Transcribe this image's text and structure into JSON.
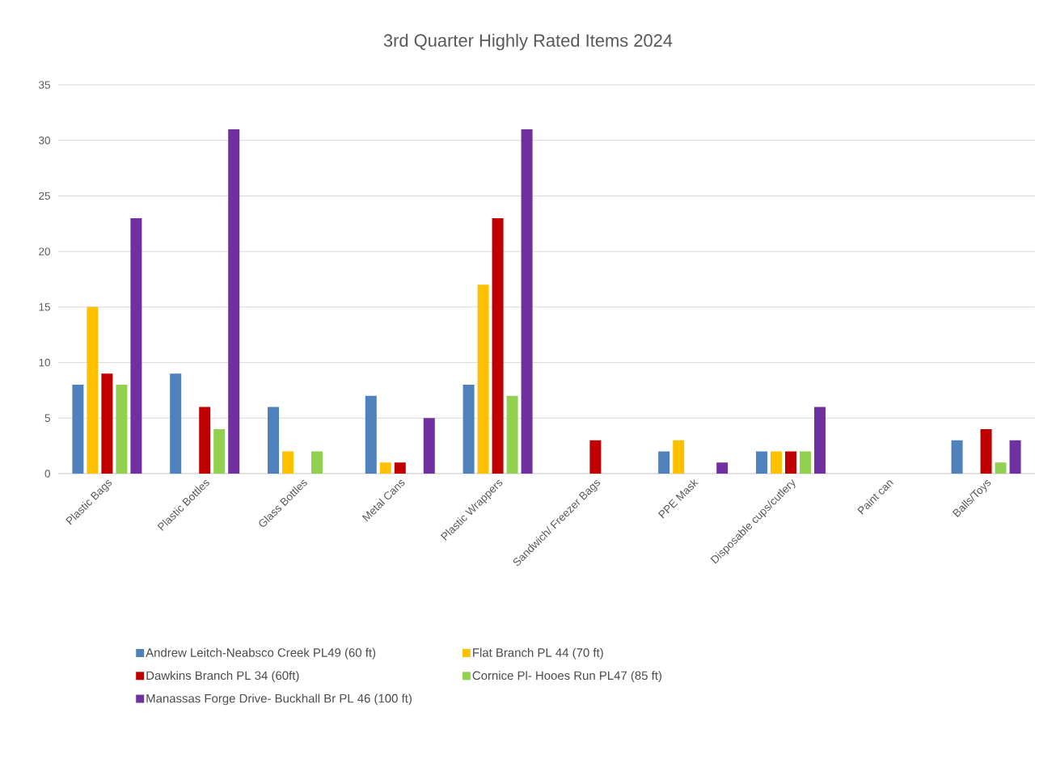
{
  "chart_data": {
    "type": "bar",
    "title": "3rd Quarter Highly Rated Items 2024",
    "categories": [
      "Plastic Bags",
      "Plastic Bottles",
      "Glass Bottles",
      "Metal Cans",
      "Plastic  Wrappers",
      "Sandwich/ Freezer Bags",
      "PPE Mask",
      "Disposable cups/cutlery",
      "Paint can",
      "Balls/Toys"
    ],
    "series": [
      {
        "name": "Andrew Leitch-Neabsco Creek PL49 (60 ft)",
        "color": "#4f81bd",
        "values": [
          8,
          9,
          6,
          7,
          8,
          0,
          2,
          2,
          0,
          3
        ]
      },
      {
        "name": "Flat Branch PL 44 (70 ft)",
        "color": "#ffc000",
        "values": [
          15,
          0,
          2,
          1,
          17,
          0,
          3,
          2,
          0,
          0
        ]
      },
      {
        "name": "Dawkins Branch PL 34 (60ft)",
        "color": "#c00000",
        "values": [
          9,
          6,
          0,
          1,
          23,
          3,
          0,
          2,
          0,
          4
        ]
      },
      {
        "name": "Cornice Pl- Hooes Run PL47 (85 ft)",
        "color": "#92d050",
        "values": [
          8,
          4,
          2,
          0,
          7,
          0,
          0,
          2,
          0,
          1
        ]
      },
      {
        "name": "Manassas Forge Drive- Buckhall Br PL 46 (100 ft)",
        "color": "#7030a0",
        "values": [
          23,
          31,
          0,
          5,
          31,
          0,
          1,
          6,
          0,
          3
        ]
      }
    ],
    "ylim": [
      0,
      35
    ],
    "yticks": [
      0,
      5,
      10,
      15,
      20,
      25,
      30,
      35
    ],
    "grid": "y",
    "legend": "bottom"
  }
}
